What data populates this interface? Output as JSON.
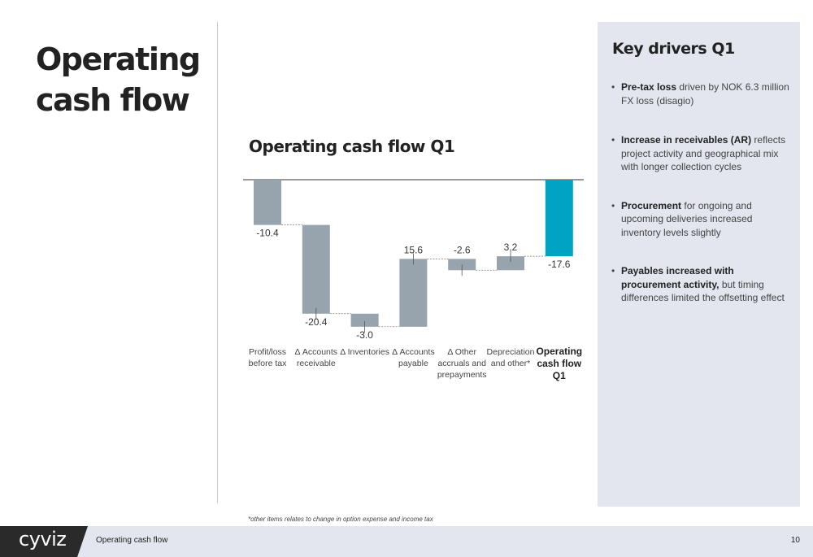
{
  "page": {
    "title_line1": "Operating",
    "title_line2": "cash flow"
  },
  "chart_data": {
    "type": "waterfall",
    "title": "Operating cash flow Q1",
    "categories": [
      [
        "Profit/loss",
        "before tax"
      ],
      [
        "Δ Accounts",
        "receivable"
      ],
      [
        "Δ Inventories"
      ],
      [
        "Δ Accounts",
        "payable"
      ],
      [
        "Δ Other",
        "accruals and",
        "prepayments"
      ],
      [
        "Depreciation",
        "and other*"
      ],
      [
        "Operating",
        "cash flow",
        "Q1"
      ]
    ],
    "values": [
      -10.4,
      -20.4,
      -3.0,
      15.6,
      -2.6,
      3.2,
      -17.6
    ],
    "value_labels": [
      "-10.4",
      "-20.4",
      "-3.0",
      "15.6",
      "-2.6",
      "3.2",
      "-17.6"
    ],
    "total_index": 6,
    "colors": {
      "step": "#97a4ad",
      "total": "#00a3c4"
    }
  },
  "footnote": "*other items relates to change in option expense and income tax",
  "panel": {
    "title": "Key drivers Q1",
    "drivers": [
      {
        "bold": "Pre-tax loss",
        "text": " driven by NOK 6.3 million FX loss (disagio)"
      },
      {
        "bold": "Increase in receivables (AR)",
        "text": " reflects project activity and geographical mix with longer collection cycles"
      },
      {
        "bold": "Procurement",
        "text": " for ongoing and upcoming deliveries increased inventory levels slightly"
      },
      {
        "bold": "Payables increased with procurement activity,",
        "text": " but timing differences limited the offsetting effect"
      }
    ]
  },
  "footer": {
    "logo": "cyviz",
    "label": "Operating cash flow",
    "page_number": "10"
  }
}
